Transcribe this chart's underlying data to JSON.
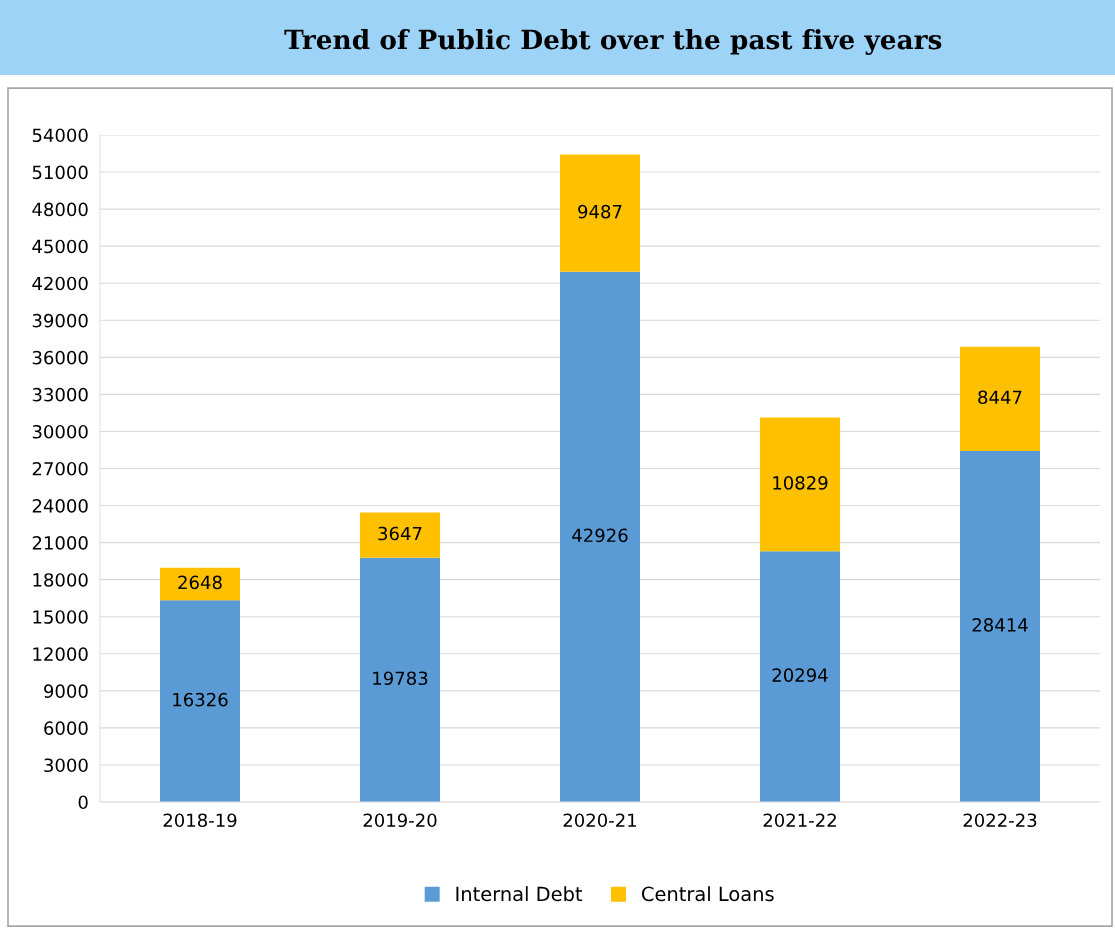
{
  "chart_data": {
    "type": "bar",
    "title": "Trend of Public Debt over the past five years",
    "categories": [
      "2018-19",
      "2019-20",
      "2020-21",
      "2021-22",
      "2022-23"
    ],
    "stacked": true,
    "series": [
      {
        "name": "Internal Debt",
        "color": "#5b9bd5",
        "values": [
          16326,
          19783,
          42926,
          20294,
          28414
        ]
      },
      {
        "name": "Central Loans",
        "color": "#ffc000",
        "values": [
          2648,
          3647,
          9487,
          10829,
          8447
        ]
      }
    ],
    "ylim": [
      0,
      54000
    ],
    "yticks": [
      0,
      3000,
      6000,
      9000,
      12000,
      15000,
      18000,
      21000,
      24000,
      27000,
      30000,
      33000,
      36000,
      39000,
      42000,
      45000,
      48000,
      51000,
      54000
    ],
    "grid": "y",
    "legend": "bottom",
    "data_labels": true
  }
}
